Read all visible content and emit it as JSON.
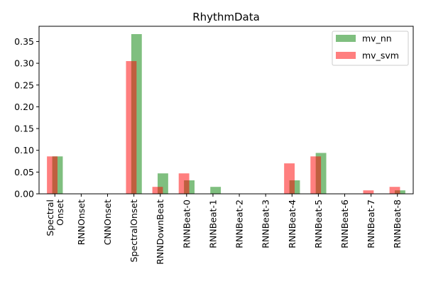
{
  "chart_data": {
    "type": "bar",
    "title": "RhythmData",
    "xlabel": "",
    "ylabel": "",
    "categories": [
      [
        "Spectral",
        "Onset"
      ],
      [
        "RNNOnset"
      ],
      [
        "CNNOnset"
      ],
      [
        "SpectralOnset"
      ],
      [
        "RNNDownBeat"
      ],
      [
        "RNNBeat-0"
      ],
      [
        "RNNBeat-1"
      ],
      [
        "RNNBeat-2"
      ],
      [
        "RNNBeat-3"
      ],
      [
        "RNNBeat-4"
      ],
      [
        "RNNBeat-5"
      ],
      [
        "RNNBeat-6"
      ],
      [
        "RNNBeat-7"
      ],
      [
        "RNNBeat-8"
      ]
    ],
    "series": [
      {
        "name": "mv_nn",
        "color": "#008000",
        "values": [
          0.086,
          0.0,
          0.0,
          0.367,
          0.047,
          0.031,
          0.016,
          0.0,
          0.0,
          0.031,
          0.094,
          0.0,
          0.0,
          0.008
        ]
      },
      {
        "name": "mv_svm",
        "color": "#ff0000",
        "values": [
          0.086,
          0.0,
          0.0,
          0.305,
          0.016,
          0.047,
          0.0,
          0.0,
          0.0,
          0.07,
          0.086,
          0.0,
          0.008,
          0.016
        ]
      }
    ],
    "ylim": [
      0,
      0.385
    ],
    "yticks": [
      0.0,
      0.05,
      0.1,
      0.15,
      0.2,
      0.25,
      0.3,
      0.35
    ],
    "ytick_labels": [
      "0.00",
      "0.05",
      "0.10",
      "0.15",
      "0.20",
      "0.25",
      "0.30",
      "0.35"
    ],
    "bar_opacity": 0.5,
    "legend_position": "top-right",
    "grid": false
  }
}
